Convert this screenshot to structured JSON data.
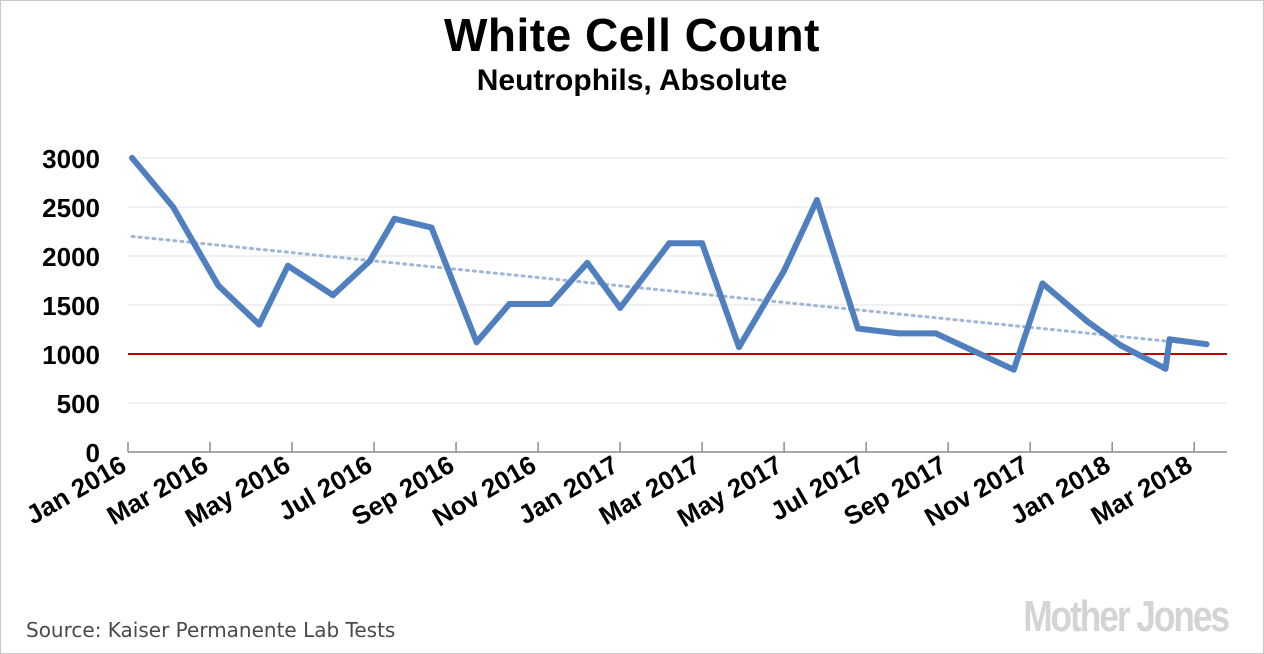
{
  "chart_data": {
    "type": "line",
    "title": "White Cell Count",
    "subtitle": "Neutrophils, Absolute",
    "xlabel": "",
    "ylabel": "",
    "ylim": [
      0,
      3000
    ],
    "yticks": [
      0,
      500,
      1000,
      1500,
      2000,
      2500,
      3000
    ],
    "x_tick_labels": [
      "Jan 2016",
      "Mar 2016",
      "May 2016",
      "Jul 2016",
      "Sep 2016",
      "Nov 2016",
      "Jan 2017",
      "Mar 2017",
      "May 2017",
      "Jul 2017",
      "Sep 2017",
      "Nov 2017",
      "Jan 2018",
      "Mar 2018"
    ],
    "x_range_months": [
      0,
      26.8
    ],
    "grid": true,
    "reference_line": {
      "value": 1000,
      "color": "#c00000"
    },
    "trendline": {
      "start": 2200,
      "end": 1090,
      "color": "#9fb6d9"
    },
    "series": [
      {
        "name": "Neutrophils, Absolute",
        "color": "#4f7fbf",
        "points": [
          {
            "month": 0.1,
            "value": 3000
          },
          {
            "month": 1.1,
            "value": 2500
          },
          {
            "month": 2.2,
            "value": 1700
          },
          {
            "month": 3.2,
            "value": 1300
          },
          {
            "month": 3.9,
            "value": 1900
          },
          {
            "month": 5.0,
            "value": 1600
          },
          {
            "month": 5.9,
            "value": 1950
          },
          {
            "month": 6.5,
            "value": 2380
          },
          {
            "month": 7.4,
            "value": 2290
          },
          {
            "month": 8.5,
            "value": 1120
          },
          {
            "month": 9.3,
            "value": 1510
          },
          {
            "month": 10.3,
            "value": 1510
          },
          {
            "month": 11.2,
            "value": 1930
          },
          {
            "month": 12.0,
            "value": 1470
          },
          {
            "month": 13.2,
            "value": 2130
          },
          {
            "month": 14.0,
            "value": 2130
          },
          {
            "month": 14.9,
            "value": 1070
          },
          {
            "month": 16.0,
            "value": 1850
          },
          {
            "month": 16.8,
            "value": 2570
          },
          {
            "month": 17.8,
            "value": 1260
          },
          {
            "month": 18.8,
            "value": 1210
          },
          {
            "month": 19.7,
            "value": 1210
          },
          {
            "month": 21.6,
            "value": 840
          },
          {
            "month": 22.3,
            "value": 1720
          },
          {
            "month": 23.4,
            "value": 1330
          },
          {
            "month": 24.2,
            "value": 1090
          },
          {
            "month": 25.3,
            "value": 850
          },
          {
            "month": 25.4,
            "value": 1150
          },
          {
            "month": 26.3,
            "value": 1100
          }
        ]
      }
    ]
  },
  "source": "Source: Kaiser Permanente Lab Tests",
  "logo": "Mother Jones"
}
